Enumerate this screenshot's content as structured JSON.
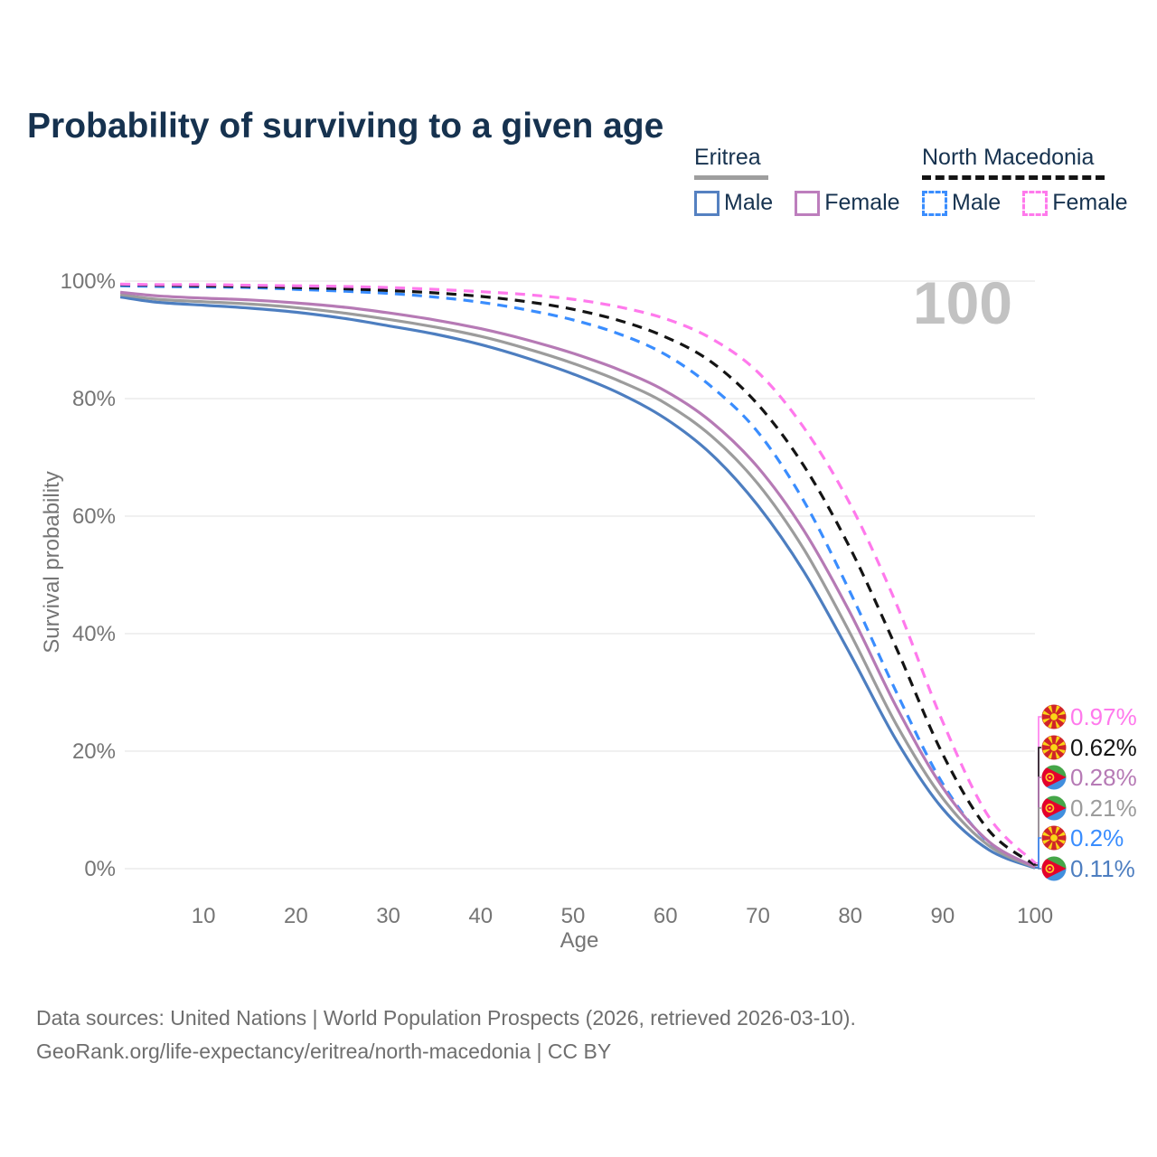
{
  "title": "Probability of surviving to a given age",
  "age_watermark": "100",
  "legend": {
    "groups": [
      {
        "label": "Eritrea",
        "line_style": "solid",
        "line_color": "#9e9e9e",
        "items": [
          {
            "label": "Male",
            "color": "#4d7ec0",
            "dashed": false
          },
          {
            "label": "Female",
            "color": "#bd7ebd",
            "dashed": false
          }
        ]
      },
      {
        "label": "North Macedonia",
        "line_style": "dashed",
        "line_color": "#141414",
        "items": [
          {
            "label": "Male",
            "color": "#3a8dfe",
            "dashed": true
          },
          {
            "label": "Female",
            "color": "#ff79ec",
            "dashed": true
          }
        ]
      }
    ]
  },
  "chart_data": {
    "type": "line",
    "title": "Probability of surviving to a given age",
    "xlabel": "Age",
    "ylabel": "Survival probability",
    "xlim": [
      1,
      100
    ],
    "ylim": [
      0,
      100
    ],
    "grid": "horizontal",
    "x_ticks": [
      10,
      20,
      30,
      40,
      50,
      60,
      70,
      80,
      90,
      100
    ],
    "y_ticks": [
      {
        "value": 100,
        "label": "100%"
      },
      {
        "value": 80,
        "label": "80%"
      },
      {
        "value": 60,
        "label": "60%"
      },
      {
        "value": 40,
        "label": "40%"
      },
      {
        "value": 20,
        "label": "20%"
      },
      {
        "value": 0,
        "label": "0%"
      }
    ],
    "ages": [
      1,
      5,
      10,
      15,
      20,
      25,
      30,
      35,
      40,
      45,
      50,
      55,
      60,
      65,
      70,
      75,
      80,
      85,
      90,
      95,
      100
    ],
    "series": [
      {
        "name": "North Macedonia Female",
        "country": "North Macedonia",
        "sex": "Female",
        "flag": "north-macedonia",
        "color": "#ff79ec",
        "dashed": true,
        "end_label": "0.97%",
        "values": [
          99.5,
          99.4,
          99.4,
          99.3,
          99.2,
          99.1,
          98.9,
          98.6,
          98.2,
          97.7,
          96.9,
          95.6,
          93.6,
          90.2,
          84.5,
          75.0,
          62.0,
          45.0,
          25.0,
          8.8,
          0.97
        ]
      },
      {
        "name": "North Macedonia",
        "country": "North Macedonia",
        "sex": "Both",
        "flag": "north-macedonia",
        "color": "#141414",
        "dashed": true,
        "end_label": "0.62%",
        "values": [
          99.4,
          99.3,
          99.2,
          99.1,
          98.9,
          98.7,
          98.4,
          98.0,
          97.4,
          96.5,
          95.2,
          93.3,
          90.5,
          86.2,
          79.0,
          68.5,
          54.5,
          37.5,
          19.5,
          6.5,
          0.62
        ]
      },
      {
        "name": "Eritrea Female",
        "country": "Eritrea",
        "sex": "Female",
        "flag": "eritrea",
        "color": "#b67ab5",
        "dashed": false,
        "end_label": "0.28%",
        "values": [
          98.1,
          97.5,
          97.1,
          96.8,
          96.3,
          95.6,
          94.6,
          93.4,
          91.9,
          90.0,
          87.7,
          84.9,
          81.3,
          76.0,
          68.3,
          57.5,
          43.5,
          27.5,
          13.8,
          4.6,
          0.28
        ]
      },
      {
        "name": "Eritrea",
        "country": "Eritrea",
        "sex": "Both",
        "flag": "eritrea",
        "color": "#9c9c9c",
        "dashed": false,
        "end_label": "0.21%",
        "values": [
          97.7,
          96.9,
          96.5,
          96.1,
          95.5,
          94.6,
          93.5,
          92.2,
          90.6,
          88.5,
          86.0,
          83.0,
          79.2,
          73.6,
          65.5,
          54.3,
          40.0,
          24.5,
          12.0,
          3.9,
          0.21
        ]
      },
      {
        "name": "North Macedonia Male",
        "country": "North Macedonia",
        "sex": "Male",
        "flag": "north-macedonia",
        "color": "#3a8dfe",
        "dashed": true,
        "end_label": "0.2%",
        "values": [
          99.2,
          99.1,
          99.0,
          98.9,
          98.6,
          98.3,
          97.9,
          97.3,
          96.4,
          95.1,
          93.4,
          91.0,
          87.5,
          82.0,
          74.3,
          62.5,
          47.0,
          30.0,
          14.5,
          4.4,
          0.2
        ]
      },
      {
        "name": "Eritrea Male",
        "country": "Eritrea",
        "sex": "Male",
        "flag": "eritrea",
        "color": "#4d7ec0",
        "dashed": false,
        "end_label": "0.11%",
        "values": [
          97.3,
          96.4,
          95.9,
          95.4,
          94.7,
          93.7,
          92.4,
          91.0,
          89.2,
          86.9,
          84.2,
          80.9,
          76.6,
          70.5,
          61.8,
          50.5,
          36.5,
          21.8,
          10.2,
          3.2,
          0.11
        ]
      }
    ]
  },
  "footer": {
    "line1": "Data sources: United Nations | World Population Prospects (2026, retrieved 2026-03-10).",
    "line2": "GeoRank.org/life-expectancy/eritrea/north-macedonia | CC BY"
  }
}
